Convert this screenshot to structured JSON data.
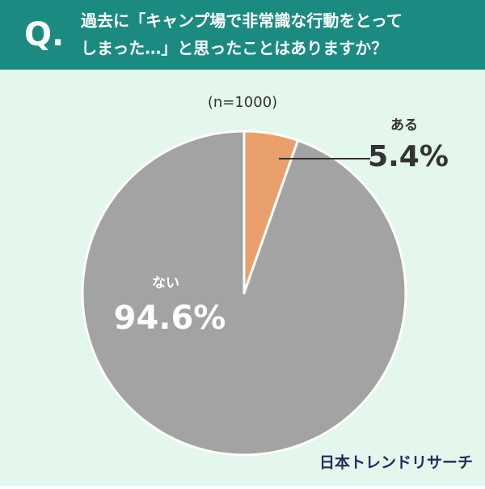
{
  "header": {
    "mark": "Q.",
    "title_lines": [
      "過去に「キャンプ場で非常識な行動をとって",
      "しまった…」と思ったことはありますか？"
    ]
  },
  "chart_data": {
    "type": "pie",
    "subtitle": "(n=1000)",
    "categories": [
      "ある",
      "ない"
    ],
    "values": [
      5.4,
      94.6
    ],
    "value_labels": [
      "5.4%",
      "94.6%"
    ],
    "colors": [
      "#e9a06b",
      "#a3a3a3"
    ]
  },
  "footer": {
    "brand": "日本トレンドリサーチ"
  }
}
